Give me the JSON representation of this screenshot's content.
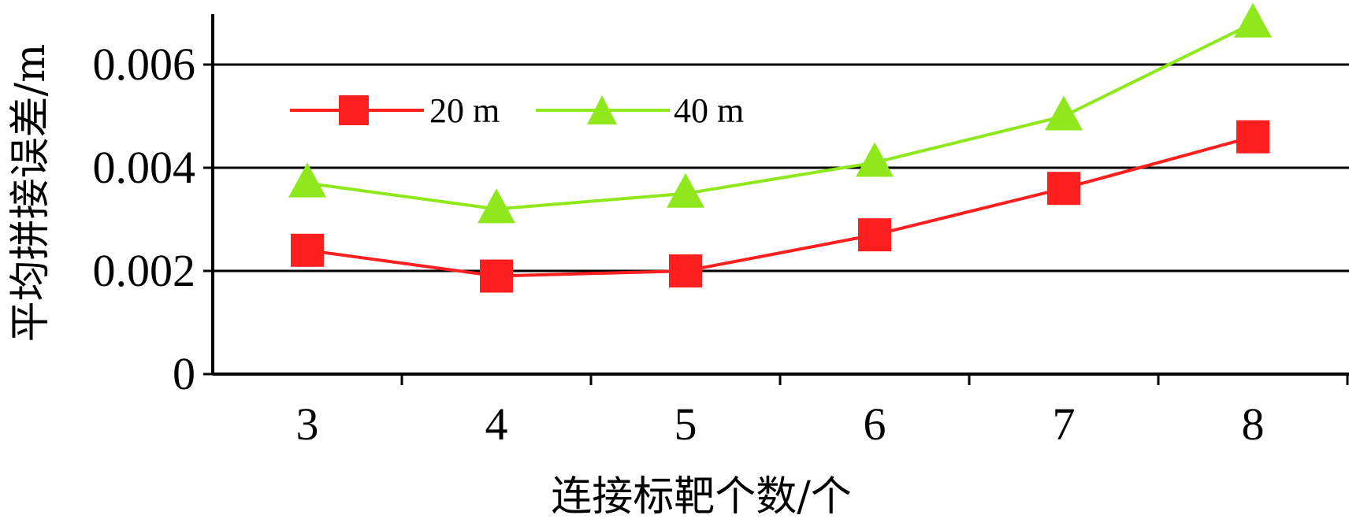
{
  "chart_data": {
    "type": "line",
    "title": "",
    "xlabel": "连接标靶个数/个",
    "ylabel": "平均拼接误差/m",
    "categories": [
      "3",
      "4",
      "5",
      "6",
      "7",
      "8"
    ],
    "ylim": [
      0,
      0.007
    ],
    "yticks": [
      {
        "value": 0,
        "label": "0"
      },
      {
        "value": 0.002,
        "label": "0.002"
      },
      {
        "value": 0.004,
        "label": "0.004"
      },
      {
        "value": 0.006,
        "label": "0.006"
      }
    ],
    "grid": "horizontal",
    "legend_position": "top-left",
    "series": [
      {
        "name": "20 m",
        "color": "#ff1f1f",
        "marker": "square",
        "values": [
          0.0024,
          0.0019,
          0.002,
          0.0027,
          0.0036,
          0.0046
        ]
      },
      {
        "name": "40 m",
        "color": "#8ee81c",
        "marker": "triangle",
        "values": [
          0.0037,
          0.0032,
          0.0035,
          0.0041,
          0.005,
          0.0068
        ]
      }
    ]
  }
}
